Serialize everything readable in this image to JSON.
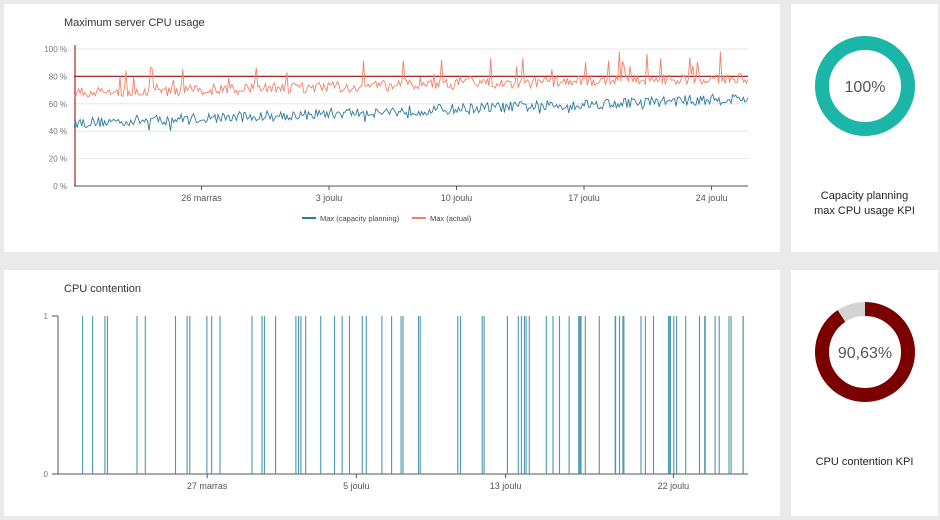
{
  "cpu_chart": {
    "title": "Maximum server CPU usage",
    "y_ticks": [
      "100 %",
      "80 %",
      "60 %",
      "40 %",
      "20 %",
      "0 %"
    ],
    "x_ticks": [
      "26 marras",
      "3 joulu",
      "10 joulu",
      "17 joulu",
      "24 joulu"
    ],
    "legend": [
      "Max (capacity planning)",
      "Max (actual)"
    ]
  },
  "kpi_capacity": {
    "value": "100%",
    "caption_line1": "Capacity planning",
    "caption_line2": "max CPU usage KPI"
  },
  "contention_chart": {
    "title": "CPU contention",
    "y_ticks": [
      "1",
      "0"
    ],
    "x_ticks": [
      "27 marras",
      "5 joulu",
      "13 joulu",
      "22 joulu"
    ]
  },
  "kpi_contention": {
    "value": "90,63%",
    "caption": "CPU contention KPI"
  },
  "colors": {
    "capacity_line": "#2e7aa1",
    "actual_line": "#f0826a",
    "threshold_line": "#a42626",
    "contention_bars": "#4a98b0",
    "kpi_teal": "#1bb6a8",
    "kpi_red": "#7a0000",
    "kpi_remainder": "#d3d3d3"
  },
  "chart_data": [
    {
      "type": "line",
      "title": "Maximum server CPU usage",
      "x_start": "2017-11-19",
      "x_end": "2017-12-26",
      "ylim": [
        0,
        100
      ],
      "grid": true,
      "legend_position": "bottom",
      "threshold": 80,
      "series": [
        {
          "name": "Max (capacity planning)",
          "start": 46,
          "end": 64,
          "noise": 4,
          "spike_rate": 0.04,
          "spike": -4
        },
        {
          "name": "Max (actual)",
          "start": 68,
          "end": 79,
          "noise": 4,
          "spike_rate": 0.06,
          "spike": 14
        }
      ]
    },
    {
      "type": "bar",
      "title": "CPU contention",
      "x_start": "2017-11-19",
      "x_end": "2017-12-26",
      "ylim": [
        0,
        1
      ],
      "events": [
        "2017-11-20",
        "2017-11-21",
        "2017-11-23",
        "2017-11-25",
        "2017-11-26",
        "2017-11-27",
        "2017-11-29",
        "2017-11-30",
        "2017-12-01",
        "2017-12-02",
        "2017-12-03",
        "2017-12-04",
        "2017-12-05",
        "2017-12-06",
        "2017-12-07",
        "2017-12-08",
        "2017-12-10",
        "2017-12-11",
        "2017-12-13",
        "2017-12-14",
        "2017-12-15",
        "2017-12-16",
        "2017-12-17",
        "2017-12-18",
        "2017-12-19",
        "2017-12-20",
        "2017-12-21",
        "2017-12-22",
        "2017-12-23",
        "2017-12-24",
        "2017-12-25",
        "2017-12-26"
      ]
    },
    {
      "type": "pie",
      "title": "Capacity planning max CPU usage KPI",
      "values": [
        100,
        0
      ]
    },
    {
      "type": "pie",
      "title": "CPU contention KPI",
      "values": [
        90.63,
        9.37
      ]
    }
  ]
}
